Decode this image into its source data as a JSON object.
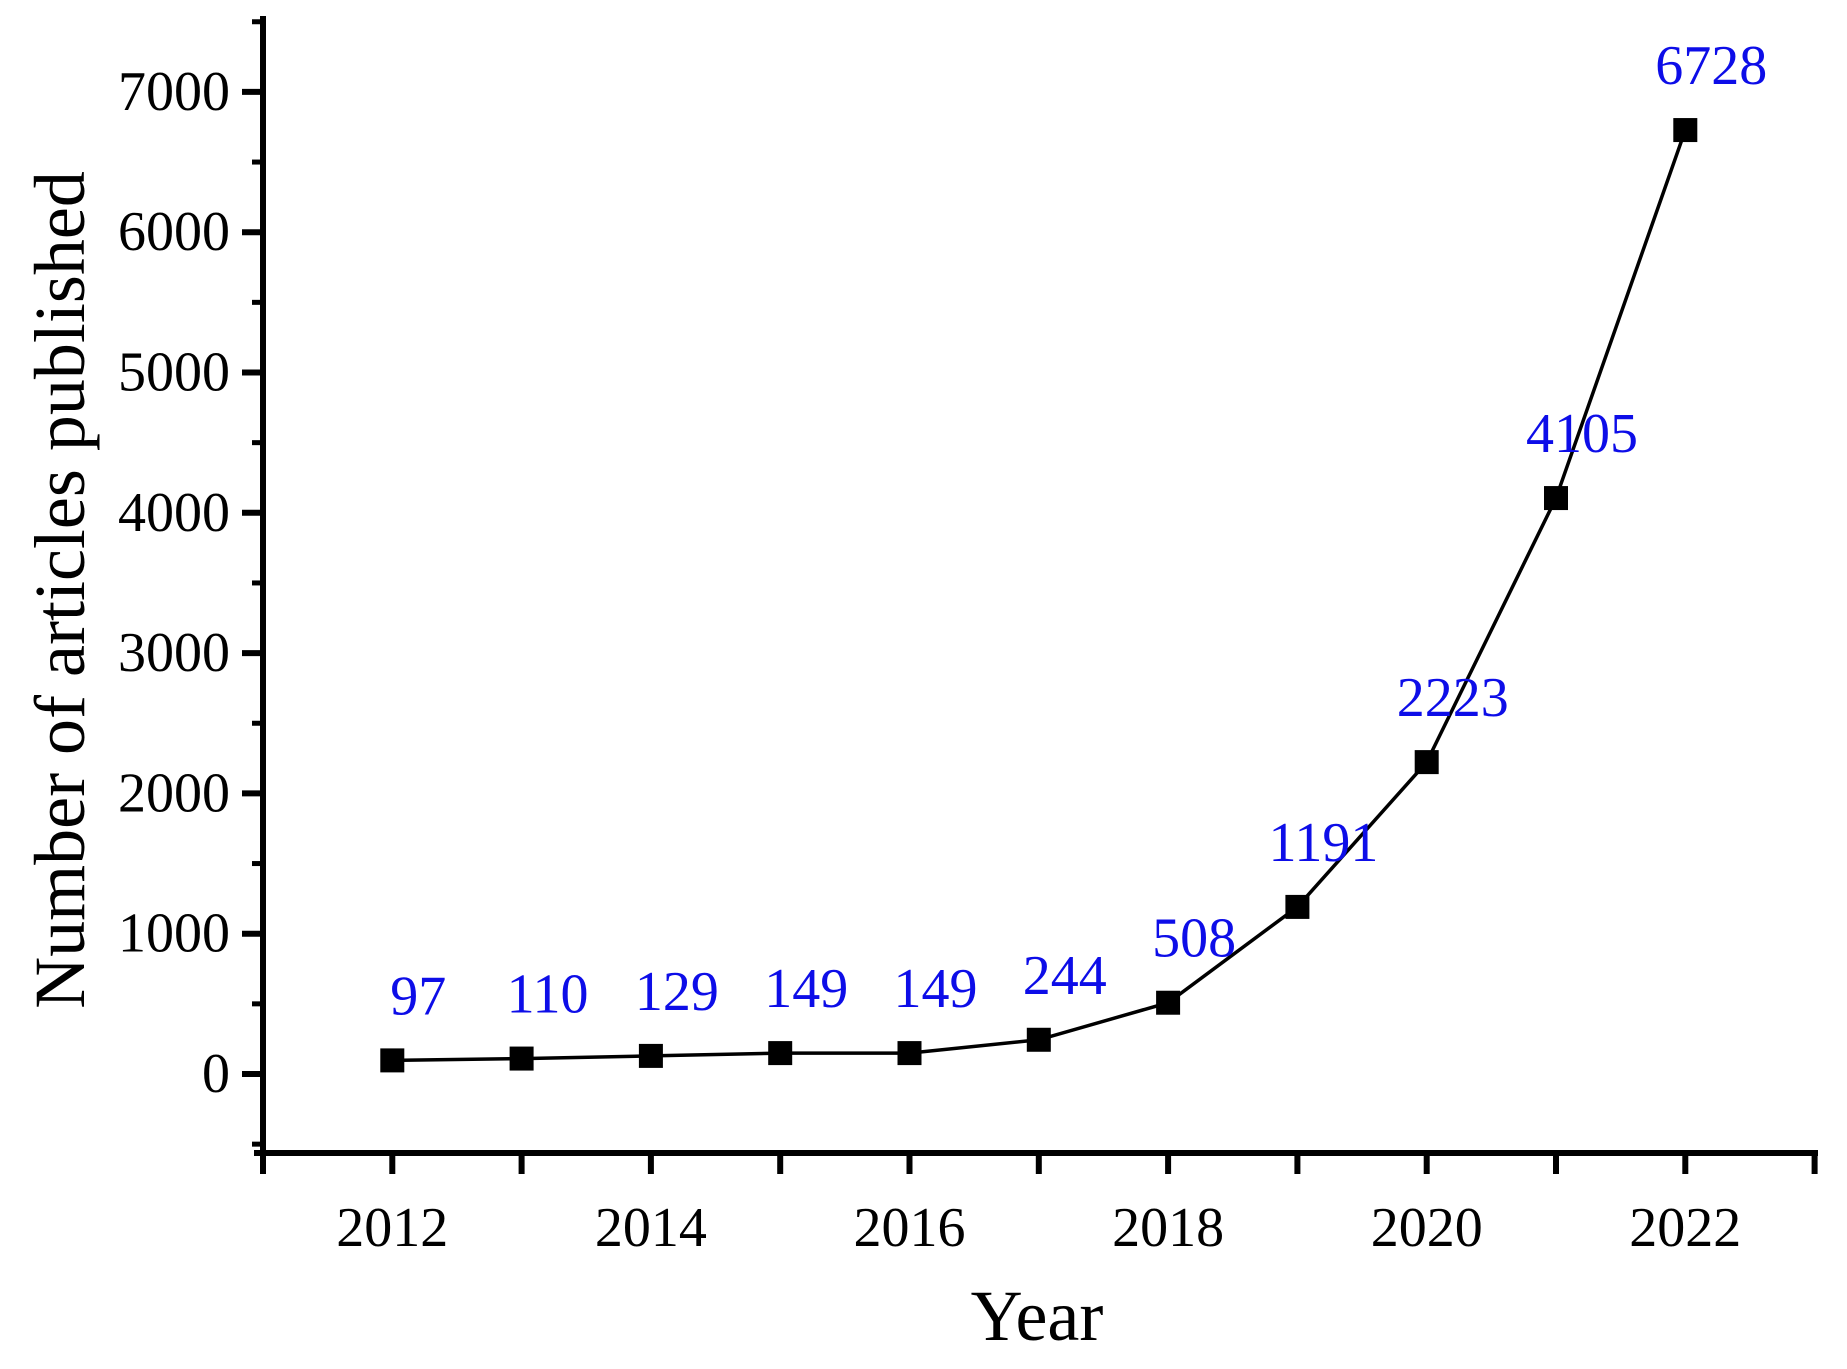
{
  "figure": {
    "background": "#ffffff"
  },
  "chart_data": {
    "type": "line",
    "title": "",
    "xlabel": "Year",
    "ylabel": "Number of articles published",
    "x": [
      2012,
      2013,
      2014,
      2015,
      2016,
      2017,
      2018,
      2019,
      2020,
      2021,
      2022
    ],
    "values": [
      97,
      110,
      129,
      149,
      149,
      244,
      508,
      1191,
      2223,
      4105,
      6728
    ],
    "point_labels": [
      "97",
      "110",
      "129",
      "149",
      "149",
      "244",
      "508",
      "1191",
      "2223",
      "4105",
      "6728"
    ],
    "xlim": [
      2011,
      2023
    ],
    "ylim": [
      -570,
      7550
    ],
    "x_ticks": {
      "tick_every_year": 1,
      "labeled_ticks": [
        2012,
        2014,
        2016,
        2018,
        2020,
        2022
      ],
      "labels": [
        "2012",
        "2014",
        "2016",
        "2018",
        "2020",
        "2022"
      ]
    },
    "y_ticks": {
      "major_step": 1000,
      "minor_step": 500,
      "major_ticks": [
        0,
        1000,
        2000,
        3000,
        4000,
        5000,
        6000,
        7000
      ],
      "labels": [
        "0",
        "1000",
        "2000",
        "3000",
        "4000",
        "5000",
        "6000",
        "7000"
      ],
      "minor_ticks": [
        -500,
        500,
        1500,
        2500,
        3500,
        4500,
        5500,
        6500,
        7500
      ]
    },
    "grid": false,
    "marker_shape": "square",
    "colors": {
      "line": "#000000",
      "marker": "#000000",
      "axis": "#000000",
      "tick_label": "#000000",
      "axis_title": "#000000",
      "data_label": "#0D0DE8"
    }
  }
}
